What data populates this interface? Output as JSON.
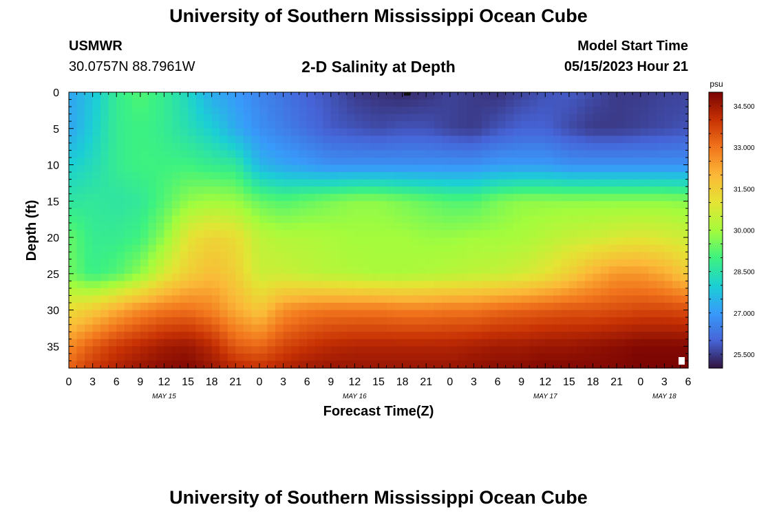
{
  "page": {
    "title_top": "University of Southern Mississippi Ocean Cube",
    "title_bottom": "University of Southern Mississippi Ocean Cube",
    "station": "USMWR",
    "coords": "30.0757N  88.7961W",
    "plot_title": "2-D Salinity at Depth",
    "model_start_label": "Model Start Time",
    "model_start_value": "05/15/2023 Hour 21"
  },
  "chart_data": {
    "type": "heatmap",
    "title": "2-D Salinity at Depth",
    "xlabel": "Forecast Time(Z)",
    "ylabel": "Depth (ft)",
    "x_tick_labels": [
      "0",
      "3",
      "6",
      "9",
      "12",
      "15",
      "18",
      "21",
      "0",
      "3",
      "6",
      "9",
      "12",
      "15",
      "18",
      "21",
      "0",
      "3",
      "6",
      "9",
      "12",
      "15",
      "18",
      "21",
      "0",
      "3",
      "6"
    ],
    "x_range_hours": [
      0,
      78
    ],
    "date_labels": [
      {
        "label": "MAY 15",
        "hour": 12
      },
      {
        "label": "MAY 16",
        "hour": 36
      },
      {
        "label": "MAY 17",
        "hour": 60
      },
      {
        "label": "MAY 18",
        "hour": 75
      }
    ],
    "y_tick_labels": [
      "0",
      "5",
      "10",
      "15",
      "20",
      "25",
      "30",
      "35"
    ],
    "y_ticks": [
      0,
      5,
      10,
      15,
      20,
      25,
      30,
      35
    ],
    "y_range_ft": [
      0,
      38
    ],
    "colorbar": {
      "unit": "psu",
      "min": 25.0,
      "max": 35.0,
      "tick_values": [
        34.5,
        33.0,
        31.5,
        30.0,
        28.5,
        27.0,
        25.5
      ],
      "tick_labels": [
        "34.500",
        "33.000",
        "31.500",
        "30.000",
        "28.500",
        "27.000",
        "25.500"
      ]
    },
    "salinity_psu": {
      "depths_ft": [
        0,
        5,
        10,
        15,
        20,
        25,
        30,
        35,
        38
      ],
      "hours": [
        0,
        3,
        6,
        9,
        12,
        15,
        18,
        21,
        24,
        27,
        30,
        33,
        36,
        39,
        42,
        45,
        48,
        51,
        54,
        57,
        60,
        63,
        66,
        69,
        72,
        75,
        78
      ],
      "rows": [
        [
          27.2,
          27.8,
          28.8,
          29.2,
          28.8,
          28.2,
          27.3,
          27.0,
          26.6,
          26.3,
          26.0,
          25.8,
          25.5,
          25.4,
          25.3,
          25.4,
          25.6,
          25.5,
          25.4,
          25.6,
          25.8,
          25.9,
          25.7,
          25.5,
          25.5,
          25.6,
          25.6
        ],
        [
          27.2,
          28.0,
          28.8,
          29.0,
          28.8,
          28.4,
          28.0,
          27.3,
          26.8,
          26.5,
          26.2,
          25.9,
          25.8,
          25.7,
          25.8,
          25.8,
          25.6,
          25.5,
          25.8,
          26.0,
          26.0,
          25.7,
          25.5,
          25.5,
          25.6,
          25.7,
          25.8
        ],
        [
          28.0,
          28.3,
          28.8,
          29.0,
          29.0,
          29.0,
          28.8,
          28.7,
          27.5,
          27.2,
          27.0,
          26.8,
          26.8,
          26.8,
          26.8,
          26.8,
          26.8,
          26.8,
          27.0,
          27.0,
          27.0,
          26.8,
          26.8,
          26.8,
          26.8,
          26.8,
          26.8
        ],
        [
          28.6,
          28.7,
          28.6,
          28.7,
          29.2,
          29.8,
          30.0,
          29.9,
          29.4,
          29.2,
          29.4,
          29.6,
          29.8,
          29.8,
          29.6,
          29.4,
          29.2,
          29.2,
          29.6,
          29.8,
          29.8,
          29.8,
          29.8,
          29.8,
          29.8,
          29.8,
          29.7
        ],
        [
          29.4,
          28.8,
          28.8,
          29.0,
          29.8,
          31.0,
          31.4,
          31.2,
          30.4,
          30.2,
          30.2,
          30.1,
          30.0,
          30.0,
          30.0,
          29.9,
          29.9,
          30.0,
          30.0,
          30.1,
          30.3,
          30.5,
          30.6,
          30.8,
          30.9,
          30.8,
          30.6
        ],
        [
          29.5,
          28.9,
          29.2,
          29.8,
          30.8,
          31.5,
          31.9,
          31.5,
          30.6,
          30.6,
          30.4,
          30.3,
          30.2,
          30.1,
          30.1,
          30.2,
          30.3,
          30.4,
          30.5,
          30.7,
          31.0,
          31.5,
          32.1,
          32.5,
          32.5,
          32.2,
          31.6
        ],
        [
          31.2,
          31.6,
          32.2,
          32.7,
          33.0,
          33.1,
          32.8,
          32.2,
          31.7,
          32.6,
          32.9,
          33.0,
          33.0,
          33.0,
          32.9,
          32.9,
          33.0,
          33.0,
          33.2,
          33.3,
          33.4,
          33.5,
          33.5,
          33.6,
          33.7,
          33.7,
          33.6
        ],
        [
          32.7,
          33.4,
          33.9,
          34.2,
          34.5,
          34.6,
          34.2,
          33.4,
          33.2,
          33.7,
          34.0,
          34.2,
          34.3,
          34.3,
          34.3,
          34.3,
          34.3,
          34.4,
          34.5,
          34.5,
          34.6,
          34.6,
          34.7,
          34.8,
          34.9,
          34.9,
          34.9
        ],
        [
          33.3,
          33.9,
          34.3,
          34.6,
          34.8,
          34.9,
          34.6,
          34.2,
          34.0,
          34.3,
          34.5,
          34.6,
          34.6,
          34.6,
          34.6,
          34.6,
          34.6,
          34.7,
          34.8,
          34.8,
          34.9,
          34.9,
          34.9,
          34.9,
          35.0,
          35.0,
          35.0
        ]
      ]
    }
  }
}
